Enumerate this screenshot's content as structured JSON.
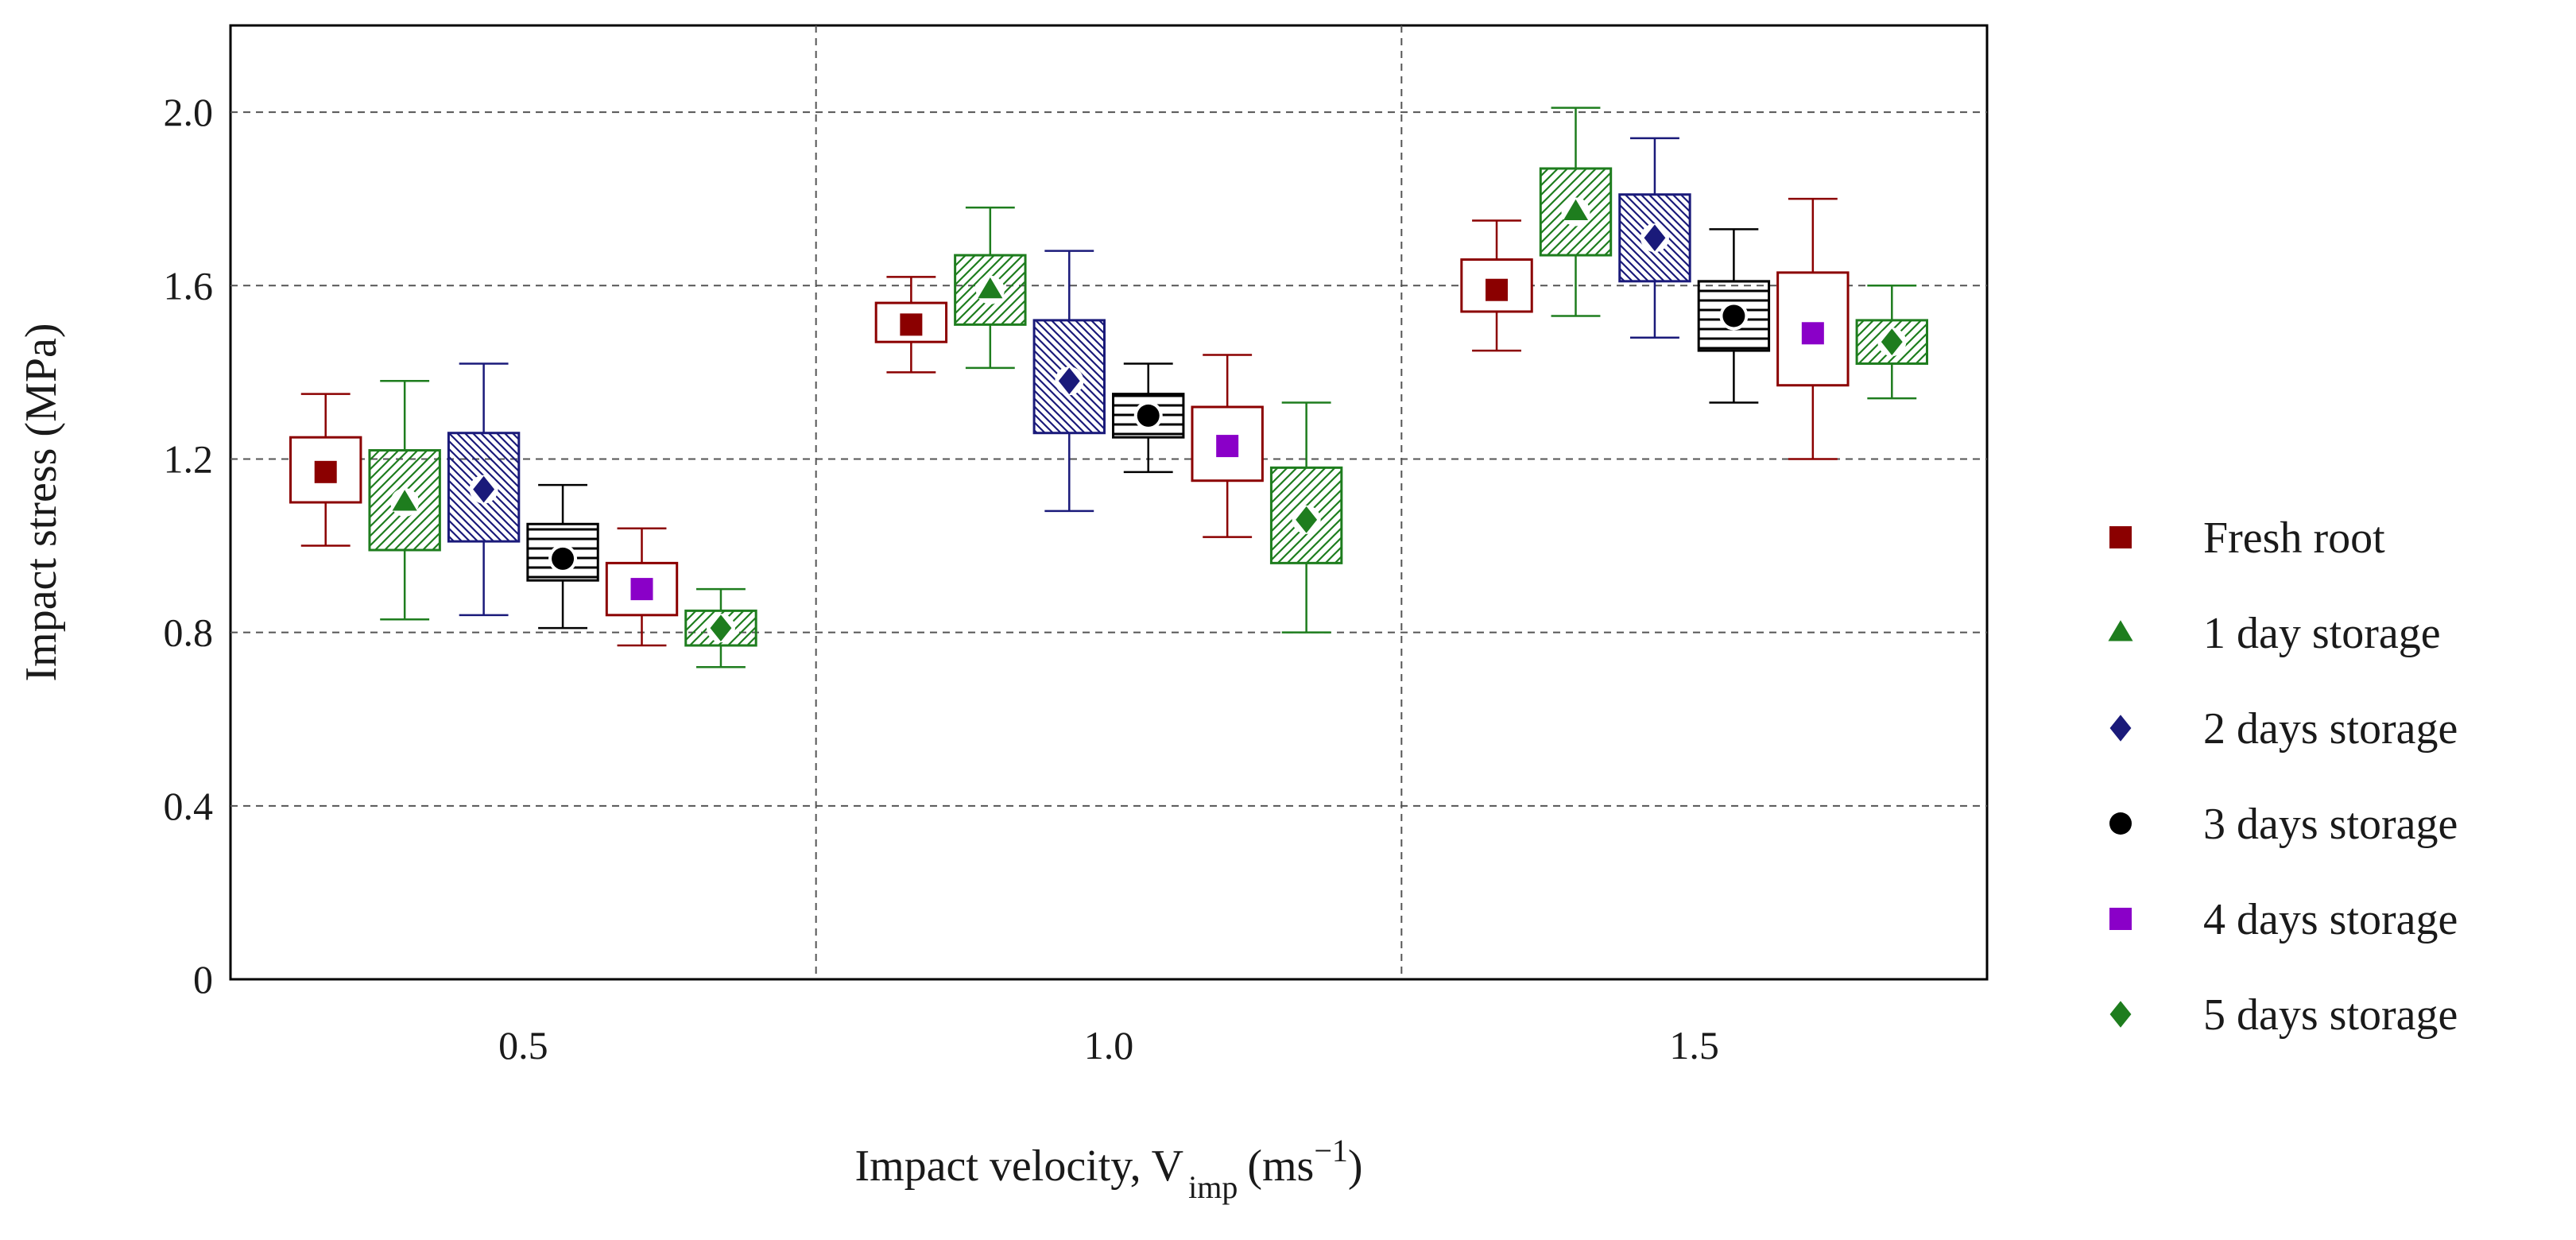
{
  "chart_data": {
    "type": "box",
    "title": "",
    "xlabel": "Impact velocity, V",
    "xlabel_subscript": "imp",
    "xlabel_unit_prefix": "(ms",
    "xlabel_unit_exp": "−1",
    "xlabel_unit_suffix": ")",
    "ylabel": "Impact stress (MPa)",
    "ylim": [
      0,
      2.2
    ],
    "yticks": [
      0,
      0.4,
      0.8,
      1.2,
      1.6,
      2.0
    ],
    "ytick_labels": [
      "0",
      "0.4",
      "0.8",
      "1.2",
      "1.6",
      "2.0"
    ],
    "categories": [
      "0.5",
      "1.0",
      "1.5"
    ],
    "grid": true,
    "legend_position": "right",
    "series": [
      {
        "name": "Fresh root",
        "color": "#8b0000",
        "marker": "square",
        "fill": "none",
        "boxes": [
          {
            "whisker_low": 1.0,
            "q1": 1.1,
            "mean": 1.17,
            "q3": 1.25,
            "whisker_high": 1.35
          },
          {
            "whisker_low": 1.4,
            "q1": 1.47,
            "mean": 1.51,
            "q3": 1.56,
            "whisker_high": 1.62
          },
          {
            "whisker_low": 1.45,
            "q1": 1.54,
            "mean": 1.59,
            "q3": 1.66,
            "whisker_high": 1.75
          }
        ]
      },
      {
        "name": "1 day storage",
        "color": "#1e7d1e",
        "marker": "triangle",
        "fill": "hatch-diag-up",
        "boxes": [
          {
            "whisker_low": 0.83,
            "q1": 0.99,
            "mean": 1.1,
            "q3": 1.22,
            "whisker_high": 1.38
          },
          {
            "whisker_low": 1.41,
            "q1": 1.51,
            "mean": 1.59,
            "q3": 1.67,
            "whisker_high": 1.78
          },
          {
            "whisker_low": 1.53,
            "q1": 1.67,
            "mean": 1.77,
            "q3": 1.87,
            "whisker_high": 2.01
          }
        ]
      },
      {
        "name": "2 days storage",
        "color": "#1a1a7a",
        "marker": "diamond",
        "fill": "hatch-diag-down",
        "boxes": [
          {
            "whisker_low": 0.84,
            "q1": 1.01,
            "mean": 1.13,
            "q3": 1.26,
            "whisker_high": 1.42
          },
          {
            "whisker_low": 1.08,
            "q1": 1.26,
            "mean": 1.38,
            "q3": 1.52,
            "whisker_high": 1.68
          },
          {
            "whisker_low": 1.48,
            "q1": 1.61,
            "mean": 1.71,
            "q3": 1.81,
            "whisker_high": 1.94
          }
        ]
      },
      {
        "name": "3 days storage",
        "color": "#000000",
        "marker": "circle",
        "fill": "hatch-horizontal",
        "boxes": [
          {
            "whisker_low": 0.81,
            "q1": 0.92,
            "mean": 0.97,
            "q3": 1.05,
            "whisker_high": 1.14
          },
          {
            "whisker_low": 1.17,
            "q1": 1.25,
            "mean": 1.3,
            "q3": 1.35,
            "whisker_high": 1.42
          },
          {
            "whisker_low": 1.33,
            "q1": 1.45,
            "mean": 1.53,
            "q3": 1.61,
            "whisker_high": 1.73
          }
        ]
      },
      {
        "name": "4 days storage",
        "color": "#8b0000",
        "marker_color": "#8a00c8",
        "marker": "square",
        "fill": "none",
        "boxes": [
          {
            "whisker_low": 0.77,
            "q1": 0.84,
            "mean": 0.9,
            "q3": 0.96,
            "whisker_high": 1.04
          },
          {
            "whisker_low": 1.02,
            "q1": 1.15,
            "mean": 1.23,
            "q3": 1.32,
            "whisker_high": 1.44
          },
          {
            "whisker_low": 1.2,
            "q1": 1.37,
            "mean": 1.49,
            "q3": 1.63,
            "whisker_high": 1.8
          }
        ]
      },
      {
        "name": "5 days storage",
        "color": "#1e7d1e",
        "marker": "diamond",
        "fill": "hatch-diag-up",
        "boxes": [
          {
            "whisker_low": 0.72,
            "q1": 0.77,
            "mean": 0.81,
            "q3": 0.85,
            "whisker_high": 0.9
          },
          {
            "whisker_low": 0.8,
            "q1": 0.96,
            "mean": 1.06,
            "q3": 1.18,
            "whisker_high": 1.33
          },
          {
            "whisker_low": 1.34,
            "q1": 1.42,
            "mean": 1.47,
            "q3": 1.52,
            "whisker_high": 1.6
          }
        ]
      }
    ]
  }
}
